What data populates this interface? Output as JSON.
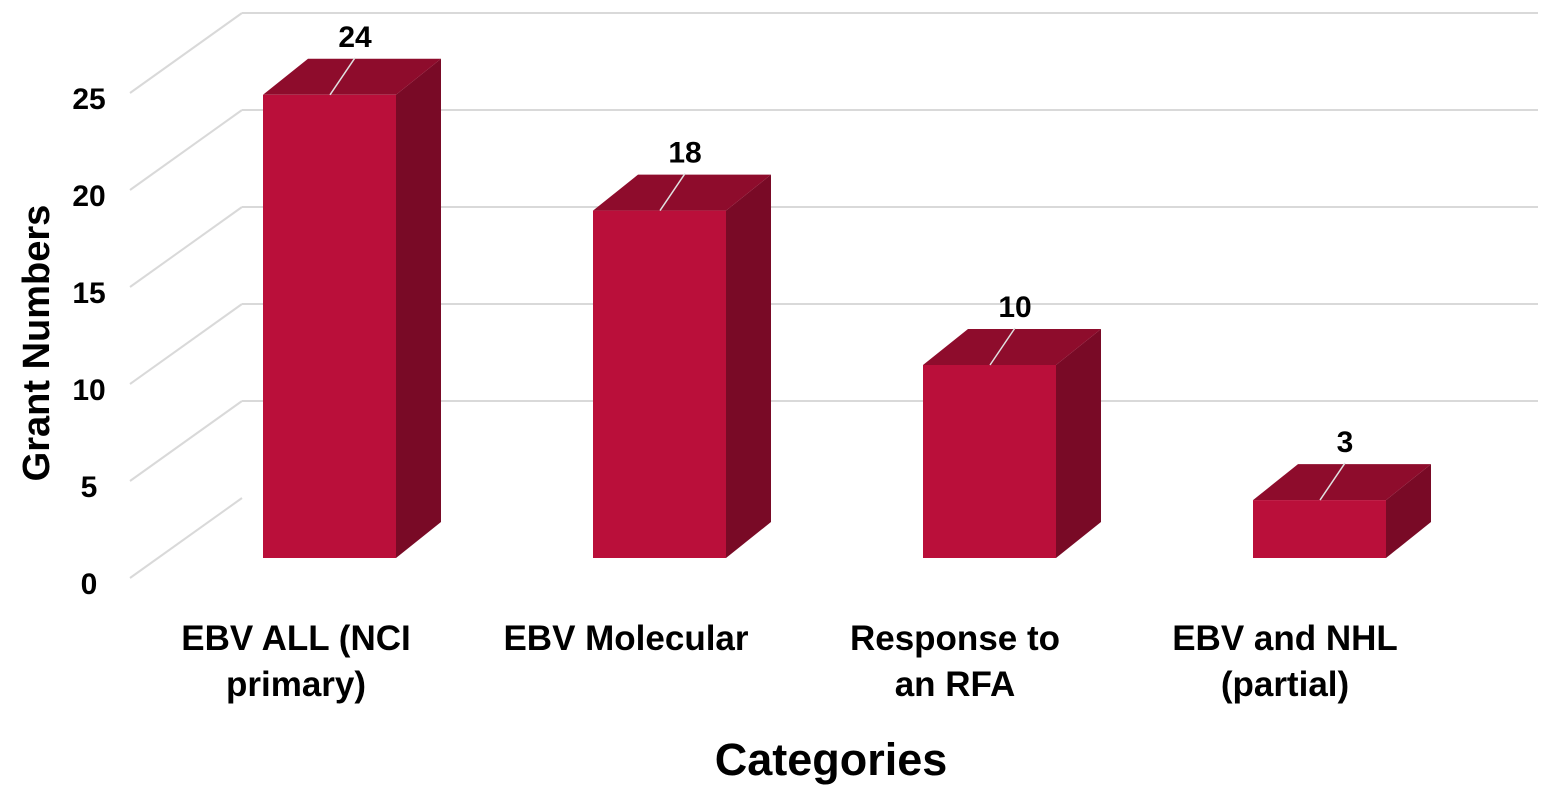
{
  "chart_data": {
    "type": "bar",
    "style": "3d-column",
    "categories": [
      [
        "EBV ALL (NCI",
        "primary)"
      ],
      [
        "EBV Molecular"
      ],
      [
        "Response to",
        "an RFA"
      ],
      [
        "EBV and NHL",
        "(partial)"
      ]
    ],
    "values": [
      24,
      18,
      10,
      3
    ],
    "data_labels": [
      "24",
      "18",
      "10",
      "3"
    ],
    "xlabel": "Categories",
    "ylabel": "Grant Numbers",
    "ylim": [
      0,
      25
    ],
    "yticks": [
      "0",
      "5",
      "10",
      "15",
      "20",
      "25"
    ],
    "ytick_values": [
      0,
      5,
      10,
      15,
      20,
      25
    ],
    "grid": true,
    "legend": "none",
    "colors": {
      "bar_front": "#BA0F3A",
      "bar_top": "#8E0C2C",
      "bar_side": "#790A26",
      "grid": "#D9D9D9",
      "leader": "#FFFFFF"
    }
  }
}
